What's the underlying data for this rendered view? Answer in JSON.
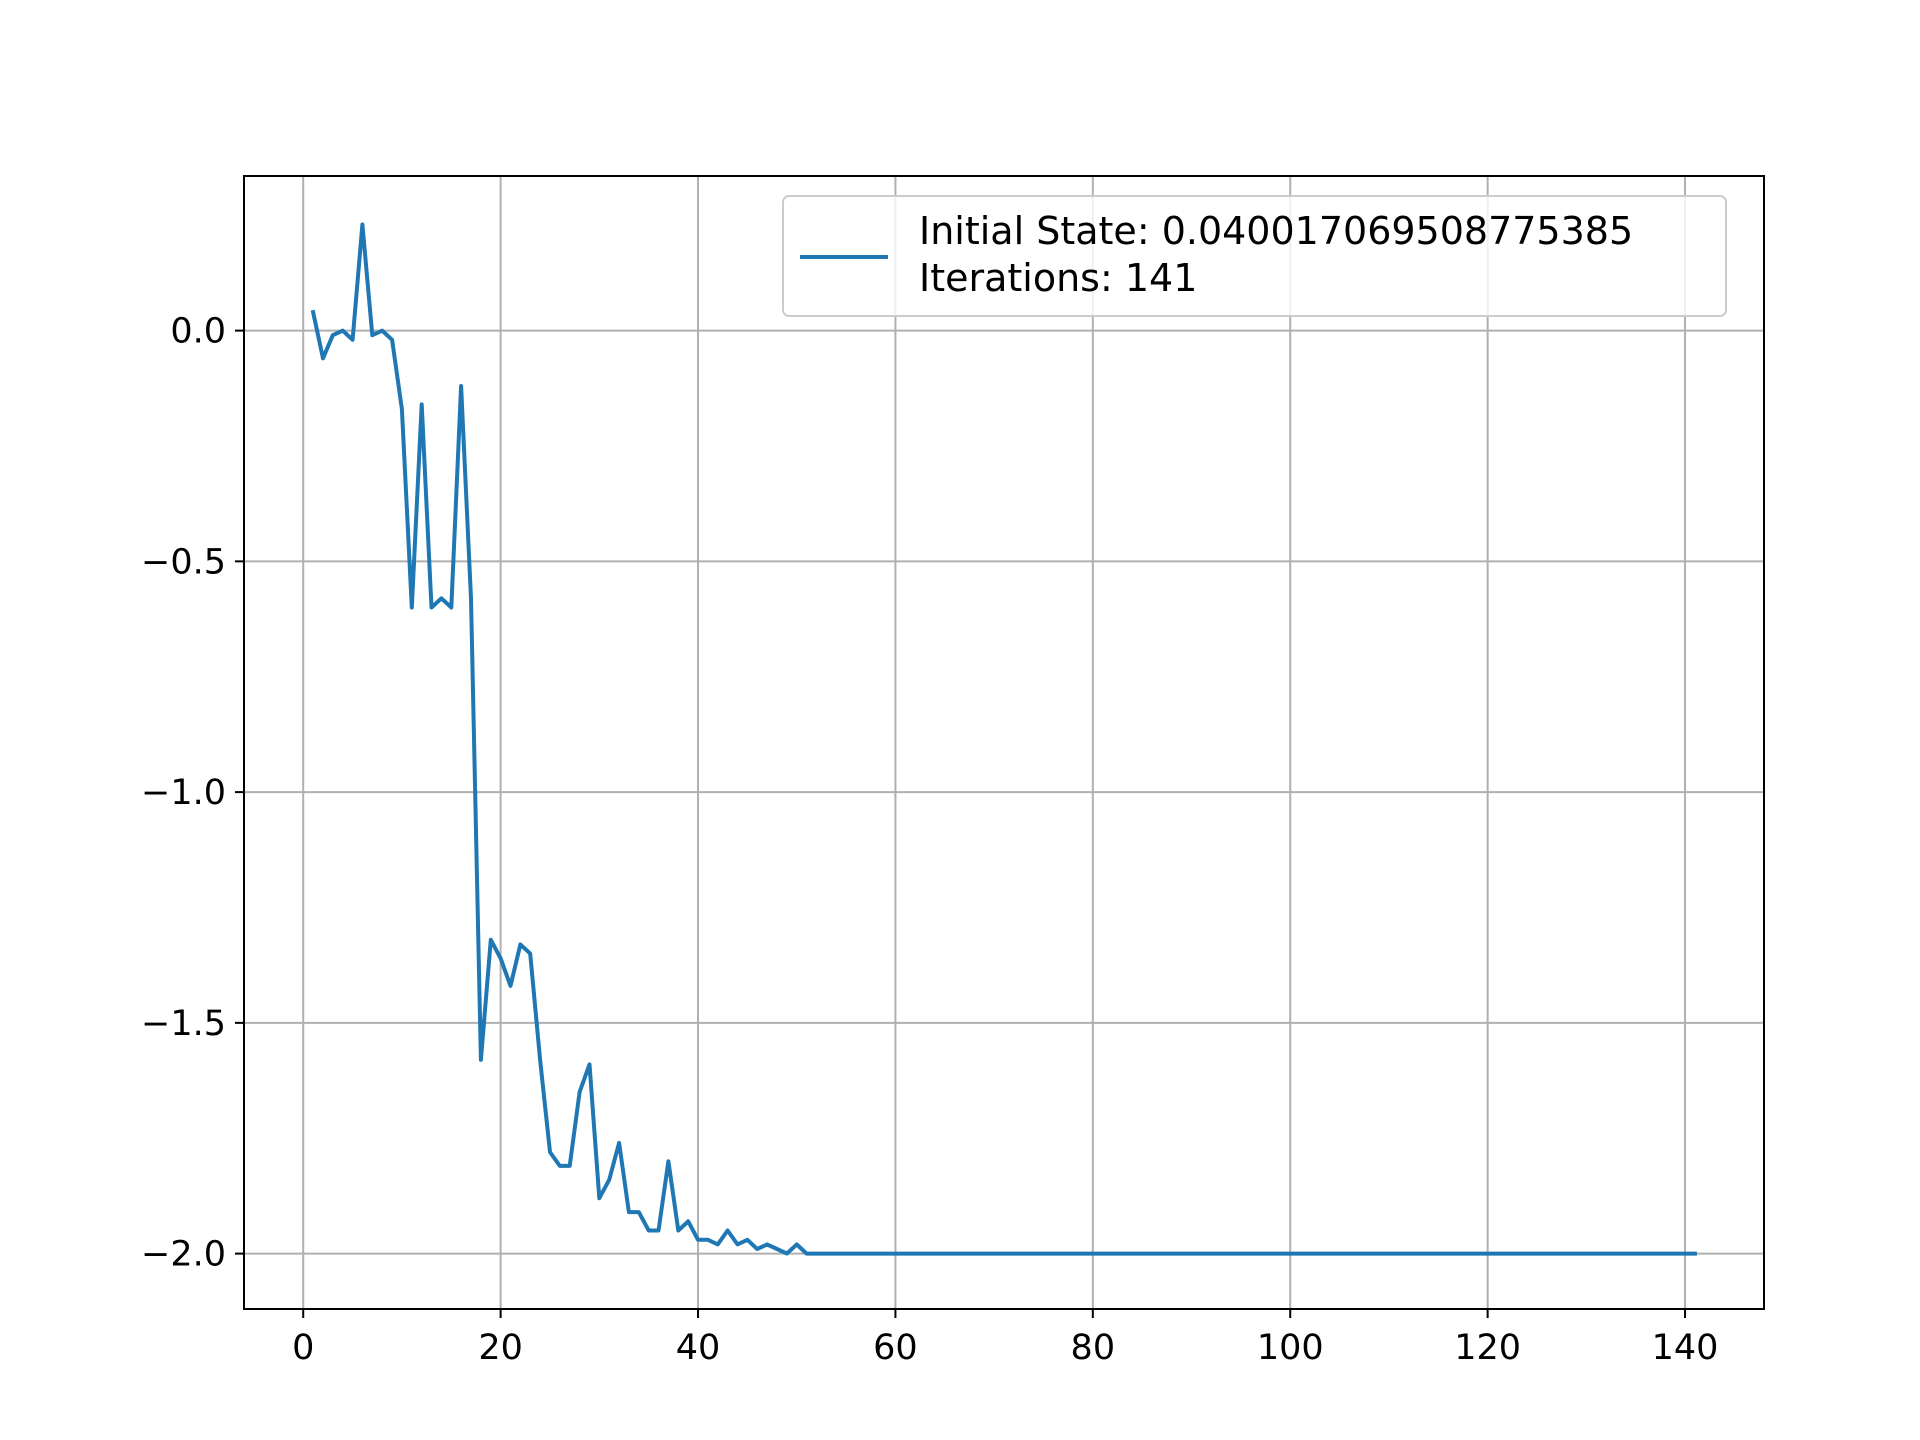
{
  "chart_data": {
    "type": "line",
    "title": "",
    "xlabel": "",
    "ylabel": "",
    "xlim": [
      -6,
      148
    ],
    "ylim": [
      -2.12,
      0.335
    ],
    "grid": true,
    "legend_placement": "top-right",
    "x_ticks": [
      0,
      20,
      40,
      60,
      80,
      100,
      120,
      140
    ],
    "x_tick_labels": [
      "0",
      "20",
      "40",
      "60",
      "80",
      "100",
      "120",
      "140"
    ],
    "y_ticks": [
      0.0,
      -0.5,
      -1.0,
      -1.5,
      -2.0
    ],
    "y_tick_labels": [
      "0.0",
      "−0.5",
      "−1.0",
      "−1.5",
      "−2.0"
    ],
    "legend": {
      "lines": [
        "Initial State: 0.04001706950877538​5",
        "Iterations: 141"
      ]
    },
    "series": [
      {
        "color": "#1f77b4",
        "x": [
          1,
          2,
          3,
          4,
          5,
          6,
          7,
          8,
          9,
          10,
          11,
          12,
          13,
          14,
          15,
          16,
          17,
          18,
          19,
          20,
          21,
          22,
          23,
          24,
          25,
          26,
          27,
          28,
          29,
          30,
          31,
          32,
          33,
          34,
          35,
          36,
          37,
          38,
          39,
          40,
          41,
          42,
          43,
          44,
          45,
          46,
          47,
          48,
          49,
          50,
          51,
          52,
          53,
          54,
          55,
          56,
          57,
          58,
          59,
          60,
          61,
          62,
          63,
          64,
          65,
          66,
          67,
          68,
          69,
          70,
          71,
          72,
          73,
          74,
          75,
          76,
          77,
          78,
          79,
          80,
          81,
          82,
          83,
          84,
          85,
          86,
          87,
          88,
          89,
          90,
          91,
          92,
          93,
          94,
          95,
          96,
          97,
          98,
          99,
          100,
          101,
          102,
          103,
          104,
          105,
          106,
          107,
          108,
          109,
          110,
          111,
          112,
          113,
          114,
          115,
          116,
          117,
          118,
          119,
          120,
          121,
          122,
          123,
          124,
          125,
          126,
          127,
          128,
          129,
          130,
          131,
          132,
          133,
          134,
          135,
          136,
          137,
          138,
          139,
          140,
          141
        ],
        "y": [
          0.04,
          -0.06,
          -0.01,
          0.0,
          -0.02,
          0.23,
          -0.01,
          0.0,
          -0.02,
          -0.17,
          -0.6,
          -0.16,
          -0.6,
          -0.58,
          -0.6,
          -0.12,
          -0.58,
          -1.58,
          -1.32,
          -1.36,
          -1.42,
          -1.33,
          -1.35,
          -1.58,
          -1.78,
          -1.81,
          -1.81,
          -1.65,
          -1.59,
          -1.88,
          -1.84,
          -1.76,
          -1.91,
          -1.91,
          -1.95,
          -1.95,
          -1.8,
          -1.95,
          -1.93,
          -1.97,
          -1.97,
          -1.98,
          -1.95,
          -1.98,
          -1.97,
          -1.99,
          -1.98,
          -1.99,
          -2.0,
          -1.98,
          -2.0,
          -2.0,
          -2.0,
          -2.0,
          -2.0,
          -2.0,
          -2.0,
          -2.0,
          -2.0,
          -2.0,
          -2.0,
          -2.0,
          -2.0,
          -2.0,
          -2.0,
          -2.0,
          -2.0,
          -2.0,
          -2.0,
          -2.0,
          -2.0,
          -2.0,
          -2.0,
          -2.0,
          -2.0,
          -2.0,
          -2.0,
          -2.0,
          -2.0,
          -2.0,
          -2.0,
          -2.0,
          -2.0,
          -2.0,
          -2.0,
          -2.0,
          -2.0,
          -2.0,
          -2.0,
          -2.0,
          -2.0,
          -2.0,
          -2.0,
          -2.0,
          -2.0,
          -2.0,
          -2.0,
          -2.0,
          -2.0,
          -2.0,
          -2.0,
          -2.0,
          -2.0,
          -2.0,
          -2.0,
          -2.0,
          -2.0,
          -2.0,
          -2.0,
          -2.0,
          -2.0,
          -2.0,
          -2.0,
          -2.0,
          -2.0,
          -2.0,
          -2.0,
          -2.0,
          -2.0,
          -2.0,
          -2.0,
          -2.0,
          -2.0,
          -2.0,
          -2.0,
          -2.0,
          -2.0,
          -2.0,
          -2.0,
          -2.0,
          -2.0,
          -2.0,
          -2.0,
          -2.0,
          -2.0,
          -2.0,
          -2.0,
          -2.0,
          -2.0,
          -2.0,
          -2.0
        ]
      }
    ]
  },
  "colors": {
    "line": "#1f77b4",
    "grid": "#b0b0b0",
    "axes": "#000000",
    "legend_border": "#cccccc"
  }
}
